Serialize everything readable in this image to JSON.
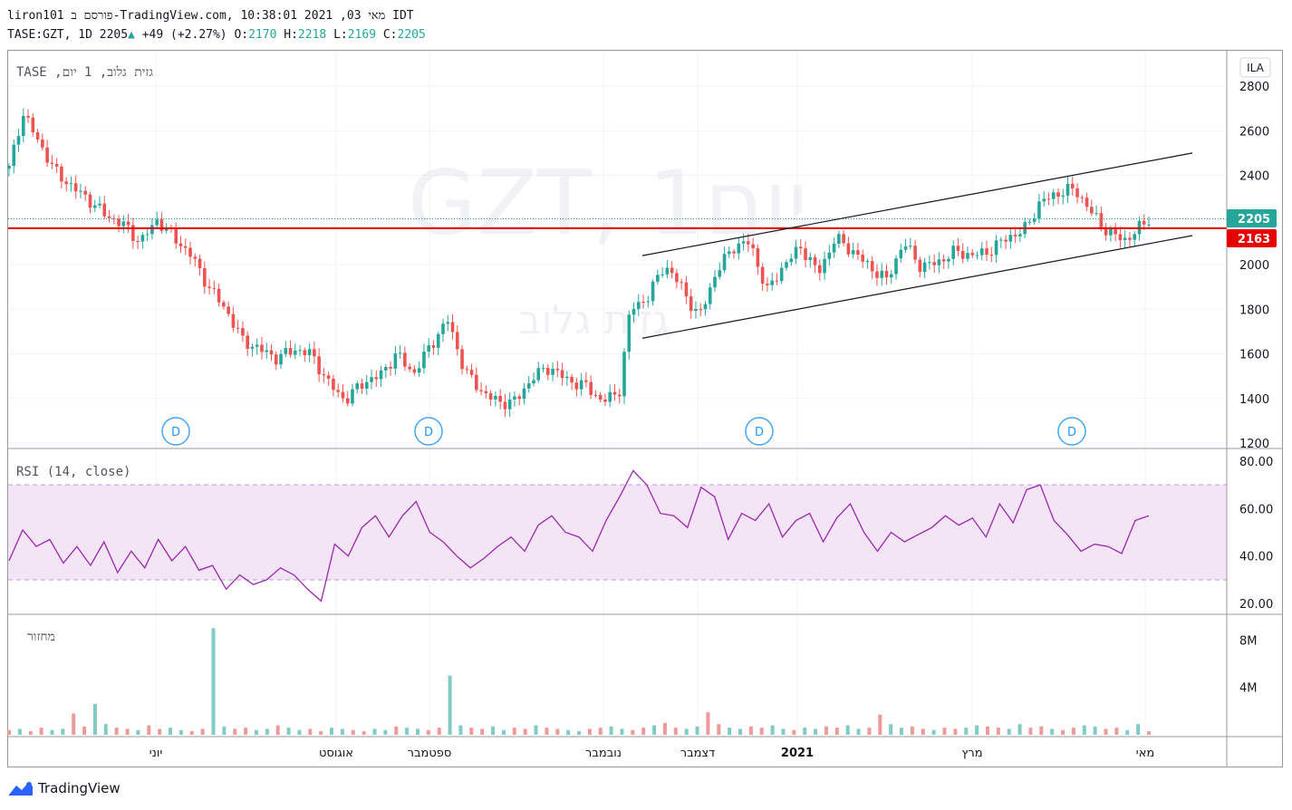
{
  "header": {
    "line1": "liron101 פורסם ב-TradingView.com, מאי 03, 2021 10:38:01 IDT",
    "symbol_prefix": "TASE:GZT, 1D 2205",
    "change": "+49 (+2.27%)",
    "o_label": "O:",
    "o_value": "2170",
    "h_label": "H:",
    "h_value": "2218",
    "l_label": "L:",
    "l_value": "2169",
    "c_label": "C:",
    "c_value": "2205"
  },
  "legend": {
    "main": "TASE ,גזית גלוב, 1 יום",
    "rsi": "RSI (14, close)",
    "volume": "מחזור"
  },
  "watermark": {
    "big": "GZT, 1יום",
    "small": "גזית גלוב"
  },
  "currency": "ILA",
  "price_labels": {
    "last": "2205",
    "line": "2163"
  },
  "dividend_marker": "D",
  "footer": {
    "brand": "TradingView"
  },
  "colors": {
    "up": "#26a69a",
    "down": "#ef5350",
    "rsi_line": "#9c27b0",
    "rsi_band": "#f3e5f5",
    "hline": "#e60000"
  },
  "chart_data": [
    {
      "type": "candlestick",
      "title": "TASE:GZT, 1D",
      "ylim": [
        1200,
        2850
      ],
      "y_ticks": [
        1200,
        1400,
        1600,
        1800,
        2000,
        2200,
        2400,
        2600,
        2800
      ],
      "x_ticks": [
        "יוני",
        "אוגוסט",
        "ספטמבר",
        "נובמבר",
        "דצמבר",
        "2021",
        "מרץ",
        "מאי"
      ],
      "horizontal_line": 2163,
      "channel": {
        "upper": [
          [
            0.0,
            2040
          ],
          [
            1.0,
            2500
          ]
        ],
        "lower": [
          [
            0.0,
            1670
          ],
          [
            1.0,
            2130
          ]
        ]
      },
      "close_path": [
        {
          "t": 0.0,
          "c": 2430
        },
        {
          "t": 0.012,
          "c": 2680
        },
        {
          "t": 0.025,
          "c": 2560
        },
        {
          "t": 0.04,
          "c": 2420
        },
        {
          "t": 0.055,
          "c": 2350
        },
        {
          "t": 0.07,
          "c": 2290
        },
        {
          "t": 0.085,
          "c": 2220
        },
        {
          "t": 0.1,
          "c": 2180
        },
        {
          "t": 0.115,
          "c": 2100
        },
        {
          "t": 0.13,
          "c": 2200
        },
        {
          "t": 0.145,
          "c": 2120
        },
        {
          "t": 0.16,
          "c": 2040
        },
        {
          "t": 0.175,
          "c": 1900
        },
        {
          "t": 0.19,
          "c": 1800
        },
        {
          "t": 0.205,
          "c": 1660
        },
        {
          "t": 0.22,
          "c": 1620
        },
        {
          "t": 0.235,
          "c": 1580
        },
        {
          "t": 0.25,
          "c": 1620
        },
        {
          "t": 0.265,
          "c": 1600
        },
        {
          "t": 0.28,
          "c": 1470
        },
        {
          "t": 0.295,
          "c": 1390
        },
        {
          "t": 0.31,
          "c": 1470
        },
        {
          "t": 0.325,
          "c": 1500
        },
        {
          "t": 0.34,
          "c": 1600
        },
        {
          "t": 0.355,
          "c": 1510
        },
        {
          "t": 0.37,
          "c": 1640
        },
        {
          "t": 0.385,
          "c": 1750
        },
        {
          "t": 0.4,
          "c": 1520
        },
        {
          "t": 0.415,
          "c": 1430
        },
        {
          "t": 0.43,
          "c": 1380
        },
        {
          "t": 0.445,
          "c": 1390
        },
        {
          "t": 0.46,
          "c": 1500
        },
        {
          "t": 0.475,
          "c": 1540
        },
        {
          "t": 0.49,
          "c": 1480
        },
        {
          "t": 0.505,
          "c": 1460
        },
        {
          "t": 0.52,
          "c": 1390
        },
        {
          "t": 0.535,
          "c": 1420
        },
        {
          "t": 0.545,
          "c": 1800
        },
        {
          "t": 0.56,
          "c": 1850
        },
        {
          "t": 0.575,
          "c": 2000
        },
        {
          "t": 0.59,
          "c": 1900
        },
        {
          "t": 0.605,
          "c": 1760
        },
        {
          "t": 0.62,
          "c": 1960
        },
        {
          "t": 0.635,
          "c": 2080
        },
        {
          "t": 0.65,
          "c": 2100
        },
        {
          "t": 0.665,
          "c": 1880
        },
        {
          "t": 0.68,
          "c": 2000
        },
        {
          "t": 0.695,
          "c": 2080
        },
        {
          "t": 0.71,
          "c": 1960
        },
        {
          "t": 0.725,
          "c": 2120
        },
        {
          "t": 0.74,
          "c": 2060
        },
        {
          "t": 0.755,
          "c": 1990
        },
        {
          "t": 0.77,
          "c": 1930
        },
        {
          "t": 0.785,
          "c": 2100
        },
        {
          "t": 0.8,
          "c": 1990
        },
        {
          "t": 0.815,
          "c": 2010
        },
        {
          "t": 0.83,
          "c": 2060
        },
        {
          "t": 0.845,
          "c": 2040
        },
        {
          "t": 0.86,
          "c": 2060
        },
        {
          "t": 0.875,
          "c": 2120
        },
        {
          "t": 0.89,
          "c": 2150
        },
        {
          "t": 0.905,
          "c": 2280
        },
        {
          "t": 0.92,
          "c": 2320
        },
        {
          "t": 0.935,
          "c": 2340
        },
        {
          "t": 0.95,
          "c": 2230
        },
        {
          "t": 0.965,
          "c": 2140
        },
        {
          "t": 0.98,
          "c": 2110
        },
        {
          "t": 0.99,
          "c": 2156
        },
        {
          "t": 1.0,
          "c": 2205
        }
      ]
    },
    {
      "type": "line",
      "title": "RSI (14, close)",
      "ylim": [
        15,
        82
      ],
      "y_ticks": [
        "20.00",
        "40.00",
        "60.00",
        "80.00"
      ],
      "bands": [
        30,
        70
      ],
      "values": [
        38,
        51,
        44,
        47,
        37,
        44,
        36,
        46,
        33,
        42,
        35,
        47,
        38,
        44,
        34,
        36,
        26,
        32,
        28,
        30,
        35,
        32,
        26,
        21,
        45,
        40,
        52,
        57,
        48,
        57,
        63,
        50,
        46,
        40,
        35,
        39,
        44,
        48,
        42,
        53,
        57,
        50,
        48,
        42,
        55,
        65,
        76,
        70,
        58,
        57,
        52,
        69,
        65,
        47,
        58,
        55,
        62,
        48,
        55,
        58,
        46,
        56,
        62,
        50,
        42,
        50,
        46,
        49,
        52,
        57,
        53,
        56,
        48,
        62,
        54,
        68,
        70,
        55,
        49,
        42,
        45,
        44,
        41,
        55,
        57
      ]
    },
    {
      "type": "bar",
      "title": "מחזור",
      "ylim": [
        0,
        9.4
      ],
      "y_ticks": [
        "4M",
        "8M"
      ],
      "values": [
        0.4,
        0.5,
        0.3,
        0.6,
        0.4,
        0.5,
        1.8,
        0.7,
        2.6,
        0.9,
        0.6,
        0.5,
        0.4,
        0.8,
        0.5,
        0.6,
        0.4,
        0.3,
        0.5,
        9.0,
        0.7,
        0.5,
        0.6,
        0.4,
        0.5,
        0.8,
        0.6,
        0.4,
        0.5,
        0.3,
        0.6,
        0.5,
        0.4,
        0.3,
        0.5,
        0.4,
        0.7,
        0.6,
        0.5,
        0.4,
        0.6,
        5.0,
        0.8,
        0.6,
        0.5,
        0.7,
        0.4,
        0.6,
        0.5,
        0.8,
        0.6,
        0.5,
        0.4,
        0.3,
        0.5,
        0.6,
        0.7,
        0.5,
        0.4,
        0.6,
        0.8,
        1.0,
        0.6,
        0.5,
        0.7,
        1.9,
        0.9,
        0.6,
        0.5,
        0.7,
        0.6,
        0.8,
        0.5,
        0.4,
        0.6,
        0.5,
        0.7,
        0.6,
        0.8,
        0.5,
        0.6,
        1.7,
        0.9,
        0.6,
        0.7,
        0.5,
        0.4,
        0.6,
        0.5,
        0.6,
        0.8,
        0.7,
        0.6,
        0.5,
        0.9,
        0.6,
        0.7,
        0.5,
        0.4,
        0.6,
        0.8,
        0.7,
        0.5,
        0.6,
        0.4,
        0.9,
        0.3
      ]
    }
  ]
}
